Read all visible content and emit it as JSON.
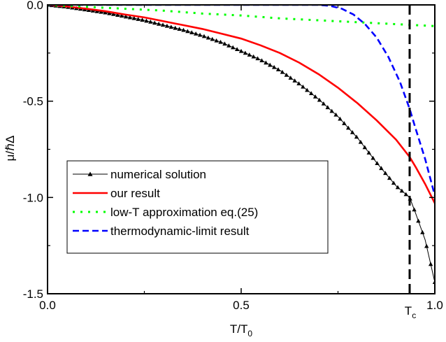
{
  "chart_data": {
    "type": "line",
    "xlabel": "T/T",
    "xlabel_sub": "0",
    "ylabel_mu": "μ/",
    "ylabel_hbar": "ℏ",
    "ylabel_delta": "Δ",
    "xlim": [
      0.0,
      1.0
    ],
    "ylim": [
      -1.5,
      0.0
    ],
    "xticks": [
      {
        "value": 0.0,
        "label": "0.0"
      },
      {
        "value": 0.5,
        "label": "0.5"
      },
      {
        "value": 1.0,
        "label": "1.0"
      }
    ],
    "yticks": [
      {
        "value": 0.0,
        "label": "0.0"
      },
      {
        "value": -0.5,
        "label": "-0.5"
      },
      {
        "value": -1.0,
        "label": "-1.0"
      },
      {
        "value": -1.5,
        "label": "-1.5"
      }
    ],
    "grid": false,
    "legend_position": "lower-left",
    "annotations": [
      {
        "type": "vertical-dashed-line",
        "x": 0.935,
        "label": "T",
        "label_sub": "c"
      }
    ],
    "series": [
      {
        "name": "numerical solution",
        "style": "line-triangle-markers",
        "color": "#000000",
        "x": [
          0.0,
          0.05,
          0.1,
          0.15,
          0.2,
          0.25,
          0.3,
          0.35,
          0.4,
          0.45,
          0.5,
          0.55,
          0.6,
          0.65,
          0.7,
          0.75,
          0.8,
          0.85,
          0.9,
          0.935,
          0.95,
          0.975,
          1.0
        ],
        "y": [
          0.0,
          -0.01,
          -0.025,
          -0.04,
          -0.06,
          -0.08,
          -0.105,
          -0.13,
          -0.16,
          -0.195,
          -0.24,
          -0.285,
          -0.34,
          -0.41,
          -0.49,
          -0.58,
          -0.69,
          -0.82,
          -0.94,
          -1.0,
          -1.08,
          -1.22,
          -1.44
        ]
      },
      {
        "name": "our result",
        "style": "solid",
        "color": "#ff0000",
        "x": [
          0.0,
          0.05,
          0.1,
          0.15,
          0.2,
          0.25,
          0.3,
          0.35,
          0.4,
          0.45,
          0.5,
          0.55,
          0.6,
          0.65,
          0.7,
          0.75,
          0.8,
          0.85,
          0.9,
          0.935,
          0.95,
          0.975,
          1.0
        ],
        "y": [
          0.0,
          -0.008,
          -0.02,
          -0.033,
          -0.05,
          -0.065,
          -0.085,
          -0.105,
          -0.125,
          -0.15,
          -0.175,
          -0.21,
          -0.25,
          -0.3,
          -0.36,
          -0.43,
          -0.51,
          -0.6,
          -0.7,
          -0.79,
          -0.84,
          -0.93,
          -1.03
        ]
      },
      {
        "name": "low-T approximation eq.(25)",
        "style": "dotted",
        "color": "#00ff00",
        "x": [
          0.0,
          0.1,
          0.2,
          0.3,
          0.4,
          0.5,
          0.6,
          0.7,
          0.8,
          0.9,
          1.0
        ],
        "y": [
          0.0,
          -0.01,
          -0.02,
          -0.03,
          -0.045,
          -0.055,
          -0.07,
          -0.08,
          -0.09,
          -0.1,
          -0.11
        ]
      },
      {
        "name": "thermodynamic-limit result",
        "style": "dashed",
        "color": "#0000ff",
        "x": [
          0.0,
          0.6,
          0.7,
          0.73,
          0.76,
          0.79,
          0.82,
          0.85,
          0.88,
          0.91,
          0.935,
          0.95,
          0.975,
          1.0
        ],
        "y": [
          0.0,
          0.0,
          0.0,
          -0.005,
          -0.02,
          -0.05,
          -0.1,
          -0.17,
          -0.27,
          -0.4,
          -0.54,
          -0.64,
          -0.8,
          -0.99
        ]
      }
    ]
  }
}
